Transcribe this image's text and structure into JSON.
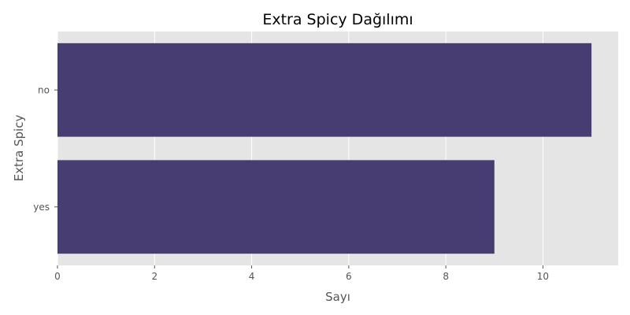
{
  "chart_data": {
    "type": "bar",
    "orientation": "horizontal",
    "title": "Extra Spicy Dağılımı",
    "xlabel": "Sayı",
    "ylabel": "Extra Spicy",
    "categories": [
      "no",
      "yes"
    ],
    "values": [
      11,
      9
    ],
    "xlim": [
      0,
      11.55
    ],
    "xticks": [
      0,
      2,
      4,
      6,
      8,
      10
    ],
    "grid": true,
    "legend": "none",
    "colors": {
      "bar": "#483d73",
      "plot_background": "#e5e5e5",
      "grid": "#ffffff"
    }
  }
}
